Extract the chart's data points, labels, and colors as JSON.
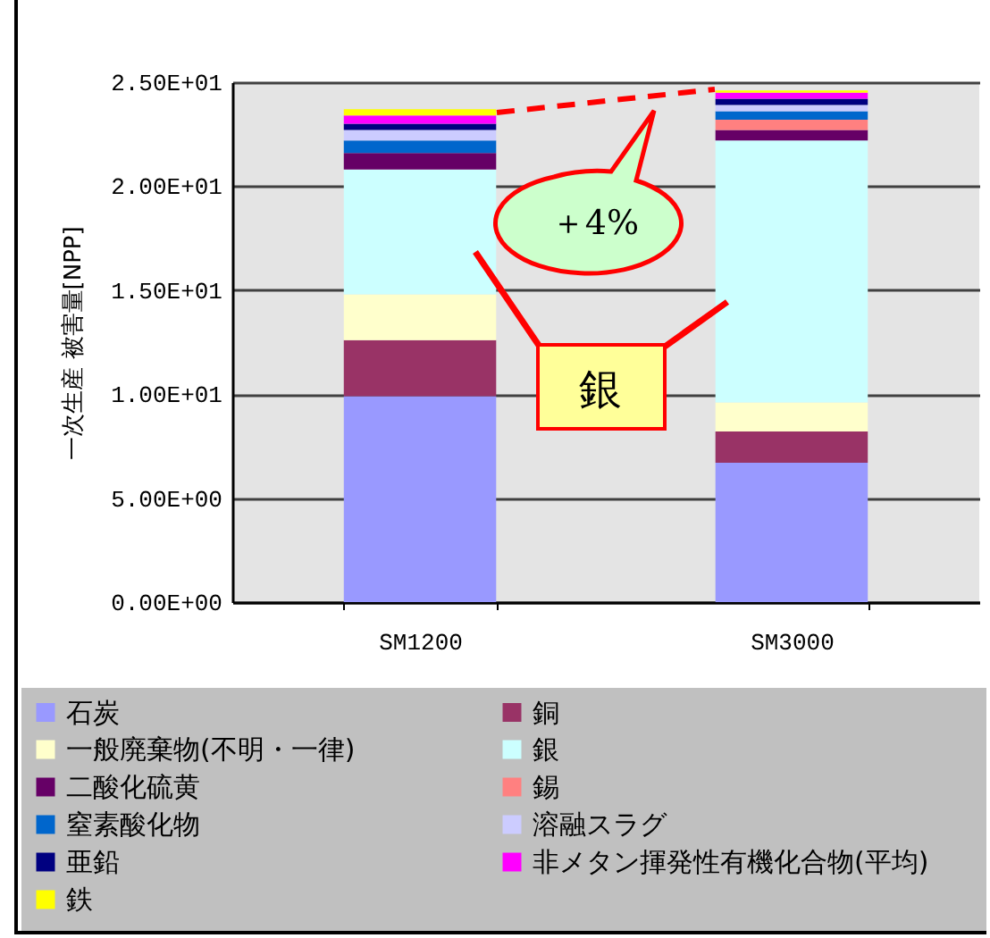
{
  "chart_data": {
    "type": "bar",
    "stacked": true,
    "ylabel": "一次生産 被害量[NPP]",
    "categories": [
      "SM1200",
      "SM3000"
    ],
    "series": [
      {
        "name": "石炭",
        "color": "#9999ff",
        "values": [
          9.9,
          6.7
        ]
      },
      {
        "name": "銅",
        "color": "#993366",
        "values": [
          2.7,
          1.5
        ]
      },
      {
        "name": "一般廃棄物(不明・一律)",
        "color": "#ffffcc",
        "values": [
          2.2,
          1.4
        ]
      },
      {
        "name": "銀",
        "color": "#ccffff",
        "values": [
          6.0,
          12.6
        ]
      },
      {
        "name": "二酸化硫黄",
        "color": "#660066",
        "values": [
          0.8,
          0.5
        ]
      },
      {
        "name": "錫",
        "color": "#ff8080",
        "values": [
          0,
          0.5
        ]
      },
      {
        "name": "窒素酸化物",
        "color": "#0066cc",
        "values": [
          0.6,
          0.4
        ]
      },
      {
        "name": "溶融スラグ",
        "color": "#ccccff",
        "values": [
          0.5,
          0.3
        ]
      },
      {
        "name": "亜鉛",
        "color": "#000080",
        "values": [
          0.3,
          0.3
        ]
      },
      {
        "name": "非メタン揮発性有機化合物(平均)",
        "color": "#ff00ff",
        "values": [
          0.4,
          0.3
        ]
      },
      {
        "name": "鉄",
        "color": "#ffff00",
        "values": [
          0.3,
          0.1
        ]
      }
    ],
    "ylim": [
      0,
      25
    ],
    "yticks": [
      {
        "value": 0,
        "label": "0.00E+00"
      },
      {
        "value": 5,
        "label": "5.00E+00"
      },
      {
        "value": 10,
        "label": "1.00E+01"
      },
      {
        "value": 15,
        "label": "1.50E+01"
      },
      {
        "value": 20,
        "label": "2.00E+01"
      },
      {
        "value": 25,
        "label": "2.50E+01"
      }
    ],
    "grid": "y",
    "legend": "bottom",
    "annotations": [
      "＋4%",
      "銀"
    ]
  }
}
